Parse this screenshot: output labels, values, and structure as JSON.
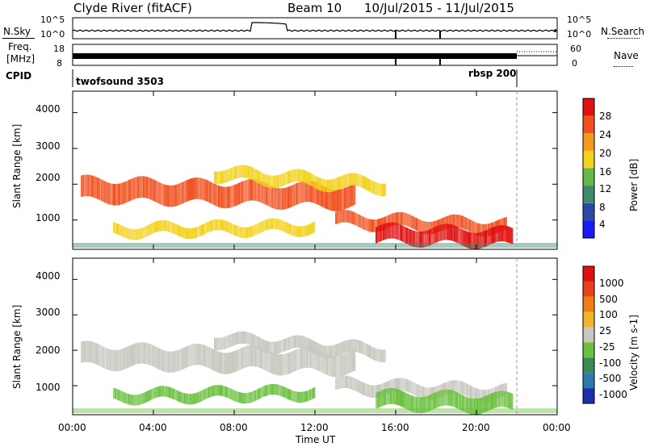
{
  "header": {
    "station": "Clyde River (fitACF)",
    "beam": "Beam 10",
    "date_range": "10/Jul/2015 - 11/Jul/2015"
  },
  "top_panels": {
    "nsky_label": "N.Sky",
    "nsky_ticks": [
      "10^5",
      "10^0"
    ],
    "nsearch_label": "N.Search",
    "nsearch_ticks": [
      "10^5",
      "10^0"
    ],
    "freq_label": "Freq.",
    "freq_unit": "[MHz]",
    "freq_ticks": [
      "18",
      "8"
    ],
    "nave_label": "Nave",
    "nave_ticks": [
      "60",
      "0"
    ],
    "cpid_label": "CPID",
    "cpid_programs": [
      {
        "name": "twofsound 3503",
        "start_hour": 0,
        "end_hour": 22
      },
      {
        "name": "rbsp 200",
        "start_hour": 22,
        "end_hour": 24
      }
    ]
  },
  "chart_data": [
    {
      "type": "heatmap",
      "panel": "power",
      "xlabel": "",
      "ylabel": "Slant Range [km]",
      "xlim": [
        0,
        24
      ],
      "ylim": [
        180,
        4600
      ],
      "y_ticks": [
        "1000",
        "2000",
        "3000",
        "4000"
      ],
      "colorbar": {
        "label": "Power [dB]",
        "ticks": [
          "4",
          "8",
          "12",
          "16",
          "20",
          "24",
          "28"
        ],
        "colors": [
          "#1a1aff",
          "#2a4aa8",
          "#3f8a6a",
          "#66b84a",
          "#f2d21c",
          "#f39a1e",
          "#f0501e",
          "#e01010"
        ]
      },
      "bands": [
        {
          "t_start": 0.4,
          "t_end": 14.0,
          "range_center_start": 1850,
          "range_center_end": 1650,
          "width": 600,
          "level": "high"
        },
        {
          "t_start": 7.0,
          "t_end": 15.5,
          "range_center_start": 2300,
          "range_center_end": 1950,
          "width": 350,
          "level": "medium"
        },
        {
          "t_start": 13.0,
          "t_end": 21.5,
          "range_center_start": 1000,
          "range_center_end": 800,
          "width": 350,
          "level": "high"
        },
        {
          "t_start": 15.0,
          "t_end": 21.8,
          "range_center_start": 600,
          "range_center_end": 500,
          "width": 450,
          "level": "very_high"
        },
        {
          "t_start": 2.0,
          "t_end": 12.0,
          "range_center_start": 700,
          "range_center_end": 800,
          "width": 300,
          "level": "medium"
        }
      ]
    },
    {
      "type": "heatmap",
      "panel": "velocity",
      "xlabel": "Time UT",
      "ylabel": "Slant Range [km]",
      "xlim": [
        0,
        24
      ],
      "ylim": [
        180,
        4600
      ],
      "x_ticks": [
        "00:00",
        "04:00",
        "08:00",
        "12:00",
        "16:00",
        "20:00",
        "00:00"
      ],
      "y_ticks": [
        "1000",
        "2000",
        "3000",
        "4000"
      ],
      "colorbar": {
        "label": "Velocity [m s-1]",
        "ticks": [
          "1000",
          "500",
          "100",
          "25",
          "-25",
          "-100",
          "-500",
          "-1000"
        ],
        "colors": [
          "#1e2ea8",
          "#2e78b0",
          "#3a8a58",
          "#6cc040",
          "#c8c8c0",
          "#f0b428",
          "#f07c14",
          "#e84018",
          "#e01010"
        ]
      },
      "bands": [
        {
          "t_start": 0.4,
          "t_end": 14.0,
          "range_center_start": 1850,
          "range_center_end": 1650,
          "width": 600,
          "level": "ground"
        },
        {
          "t_start": 7.0,
          "t_end": 15.5,
          "range_center_start": 2300,
          "range_center_end": 1950,
          "width": 350,
          "level": "ground"
        },
        {
          "t_start": 13.0,
          "t_end": 21.5,
          "range_center_start": 1000,
          "range_center_end": 800,
          "width": 350,
          "level": "ground"
        },
        {
          "t_start": 15.0,
          "t_end": 21.8,
          "range_center_start": 600,
          "range_center_end": 500,
          "width": 450,
          "level": "toward"
        },
        {
          "t_start": 2.0,
          "t_end": 12.0,
          "range_center_start": 700,
          "range_center_end": 800,
          "width": 300,
          "level": "toward"
        }
      ]
    }
  ]
}
